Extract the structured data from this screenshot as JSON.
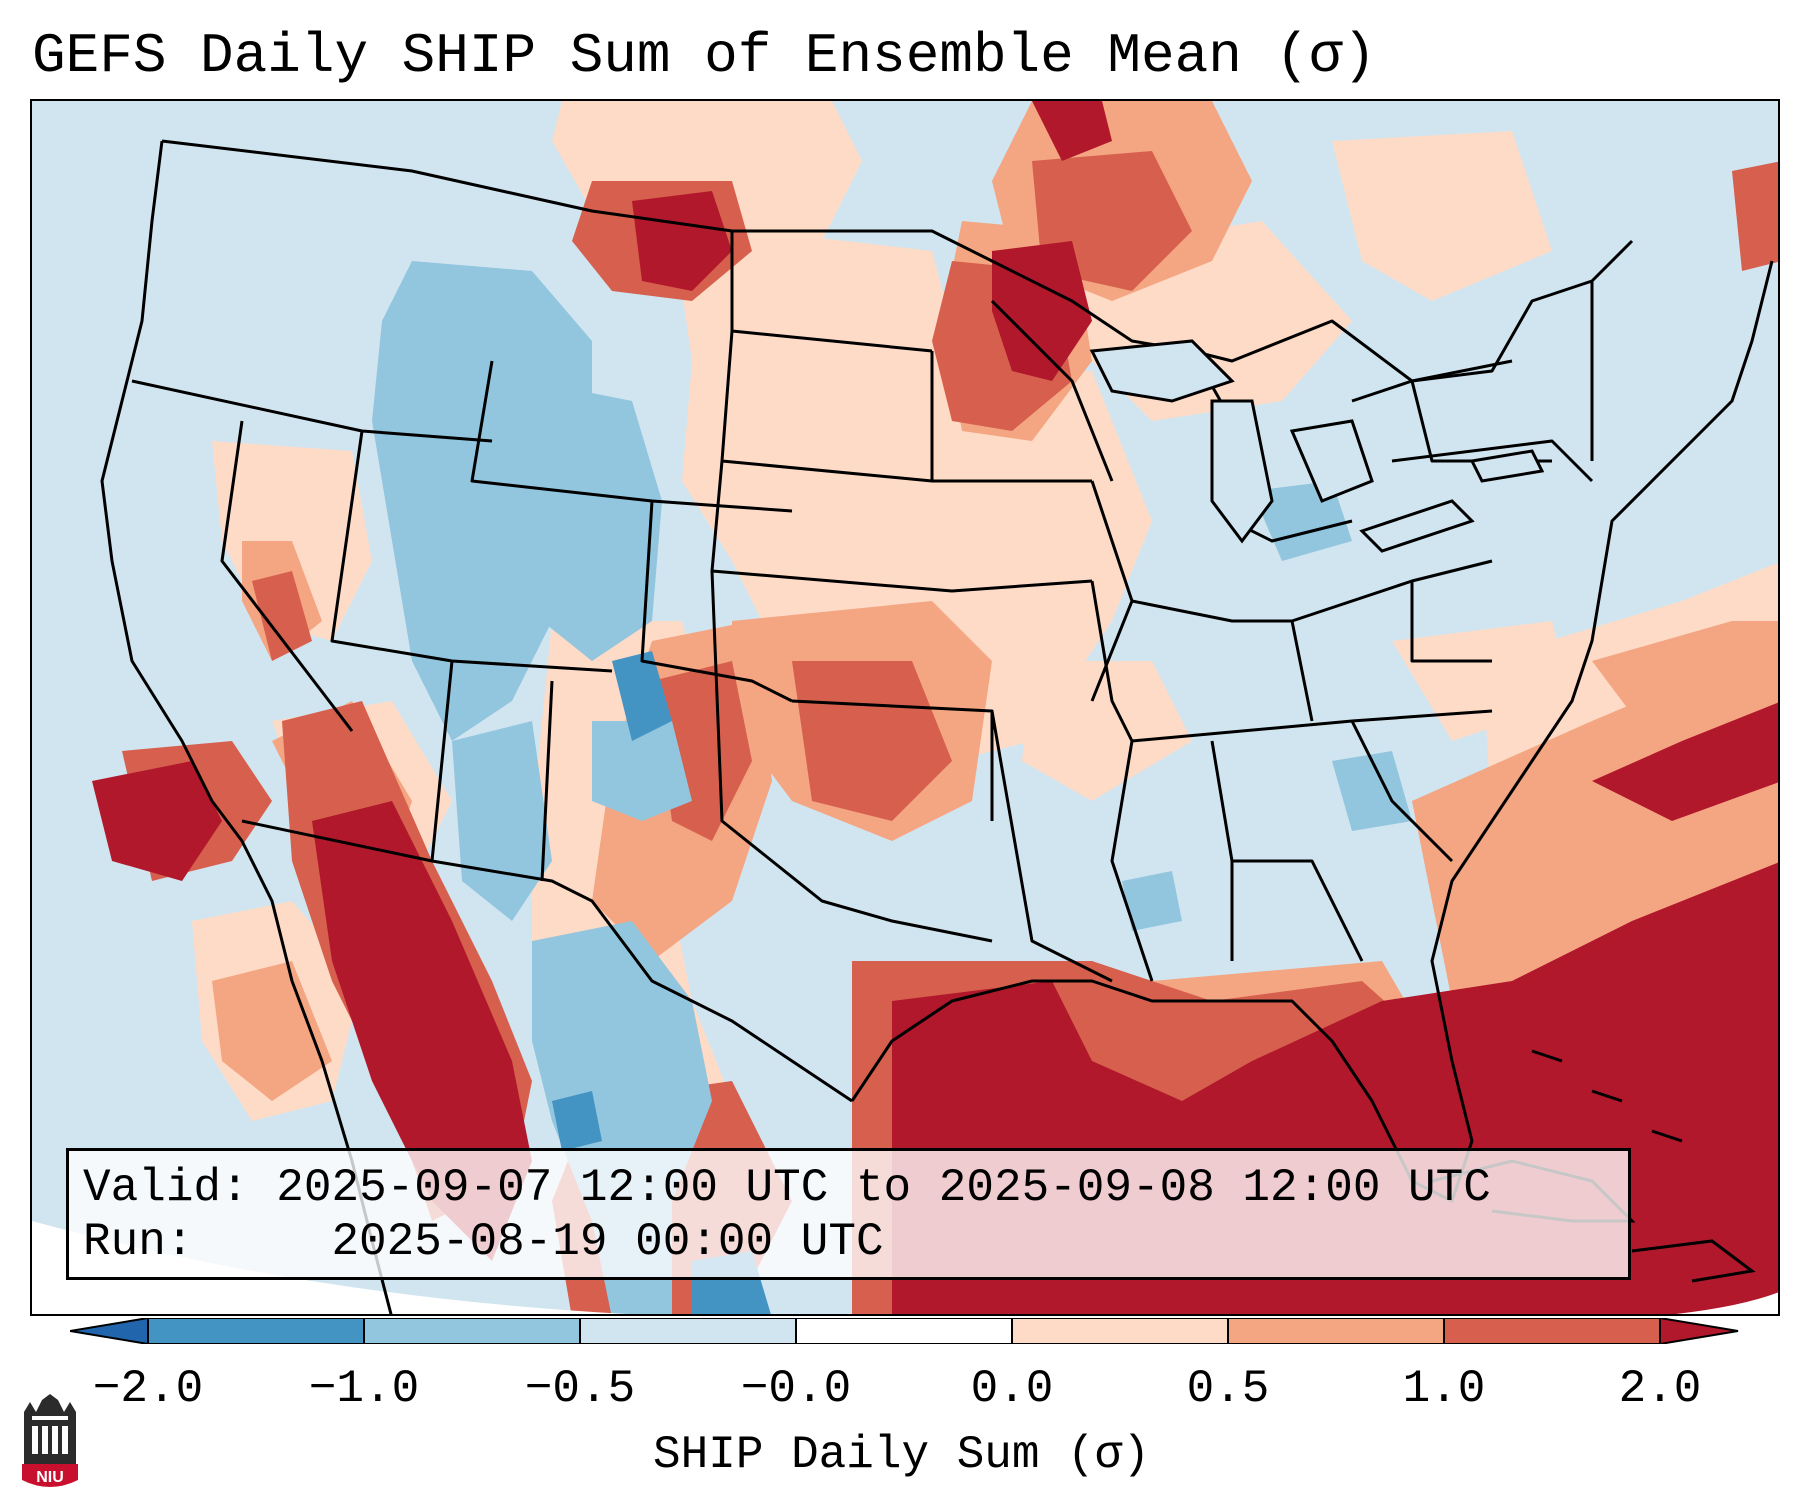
{
  "title": "GEFS Daily SHIP Sum of Ensemble Mean (σ)",
  "info": {
    "valid_label": "Valid:",
    "valid_value": "2025-09-07 12:00 UTC to 2025-09-08 12:00 UTC",
    "run_label": "Run:",
    "run_value": "2025-08-19 00:00 UTC"
  },
  "colorbar": {
    "label": "SHIP Daily Sum (σ)",
    "ticks": [
      "−2.0",
      "−1.0",
      "−0.5",
      "−0.0",
      "0.0",
      "0.5",
      "1.0",
      "2.0"
    ],
    "bins": [
      {
        "range": "<-2.0",
        "color": "#2166ac"
      },
      {
        "range": "-2.0 to -1.0",
        "color": "#4393c3"
      },
      {
        "range": "-1.0 to -0.5",
        "color": "#92c5de"
      },
      {
        "range": "-0.5 to -0.0",
        "color": "#d1e5f0"
      },
      {
        "range": "-0.0 to 0.0",
        "color": "#ffffff"
      },
      {
        "range": "0.0 to 0.5",
        "color": "#fddbc7"
      },
      {
        "range": "0.5 to 1.0",
        "color": "#f4a582"
      },
      {
        "range": "1.0 to 2.0",
        "color": "#d6604d"
      },
      {
        "range": ">2.0",
        "color": "#b2182b"
      }
    ]
  },
  "logo": {
    "text": "NIU",
    "icon": "niu-logo-icon"
  }
}
